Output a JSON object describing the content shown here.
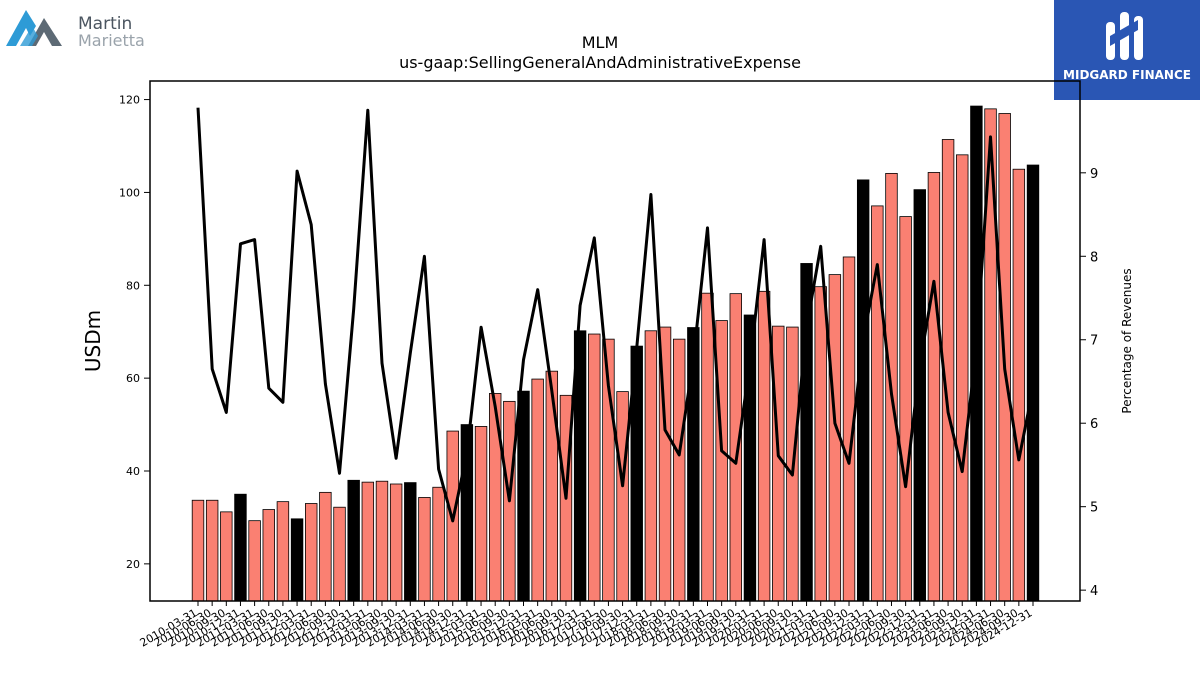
{
  "branding": {
    "left_logo_line1": "Martin",
    "left_logo_line2": "Marietta",
    "right_logo_text": "MIDGARD FINANCE"
  },
  "chart_data": {
    "type": "bar",
    "title": "MLM",
    "subtitle": "us-gaap:SellingGeneralAndAdministrativeExpense",
    "ylabel": "USDm",
    "y2label": "Percentage of Revenues",
    "ylim": [
      12,
      124
    ],
    "y2lim": [
      3.87,
      10.1
    ],
    "yticks": [
      20,
      40,
      60,
      80,
      100,
      120
    ],
    "y2ticks": [
      4,
      5,
      6,
      7,
      8,
      9
    ],
    "colors": {
      "quarter": "#fa8072",
      "annual": "#000000",
      "line": "#000000"
    },
    "categories": [
      "2010-03-31",
      "2010-06-30",
      "2010-09-30",
      "2010-12-31",
      "2011-03-31",
      "2011-06-30",
      "2011-09-30",
      "2011-12-31",
      "2012-03-31",
      "2012-06-30",
      "2012-09-30",
      "2012-12-31",
      "2013-03-31",
      "2013-06-30",
      "2013-09-30",
      "2013-12-31",
      "2014-03-31",
      "2014-06-30",
      "2014-09-30",
      "2014-12-31",
      "2015-03-31",
      "2015-06-30",
      "2015-09-30",
      "2015-12-31",
      "2016-03-31",
      "2016-06-30",
      "2016-09-30",
      "2016-12-31",
      "2017-03-31",
      "2017-06-30",
      "2017-09-30",
      "2017-12-31",
      "2018-03-31",
      "2018-06-30",
      "2018-09-30",
      "2018-12-31",
      "2019-03-31",
      "2019-06-30",
      "2019-09-30",
      "2019-12-31",
      "2020-03-31",
      "2020-06-30",
      "2020-09-30",
      "2020-12-31",
      "2021-03-31",
      "2021-06-30",
      "2021-09-30",
      "2021-12-31",
      "2022-03-31",
      "2022-06-30",
      "2022-09-30",
      "2022-12-31",
      "2023-03-31",
      "2023-06-30",
      "2023-09-30",
      "2023-12-31",
      "2024-03-31",
      "2024-06-30",
      "2024-09-30",
      "2024-12-31"
    ],
    "series": [
      {
        "kind": "bar",
        "values": [
          33.7,
          33.7,
          31.2,
          35.0,
          29.3,
          31.7,
          33.4,
          29.7,
          33.0,
          35.4,
          32.2,
          38.0,
          37.6,
          37.8,
          37.2,
          37.5,
          34.3,
          36.5,
          48.6,
          50.0,
          49.6,
          56.7,
          55.0,
          57.2,
          59.8,
          61.5,
          56.3,
          70.2,
          69.5,
          68.4,
          57.1,
          66.9,
          70.2,
          71.0,
          68.4,
          70.9,
          78.3,
          72.4,
          78.2,
          73.6,
          78.7,
          71.2,
          71.0,
          84.7,
          79.7,
          82.3,
          86.1,
          102.7,
          97.1,
          104.1,
          94.8,
          100.6,
          104.3,
          111.4,
          108.1,
          118.6,
          118.0,
          117.0,
          105.0,
          105.9
        ],
        "annual": [
          false,
          false,
          false,
          true,
          false,
          false,
          false,
          true,
          false,
          false,
          false,
          true,
          false,
          false,
          false,
          true,
          false,
          false,
          false,
          true,
          false,
          false,
          false,
          true,
          false,
          false,
          false,
          true,
          false,
          false,
          false,
          true,
          false,
          false,
          false,
          true,
          false,
          false,
          false,
          true,
          false,
          false,
          false,
          true,
          false,
          false,
          false,
          true,
          false,
          false,
          false,
          true,
          false,
          false,
          false,
          true,
          false,
          false,
          false,
          true
        ]
      },
      {
        "kind": "line",
        "axis": "right",
        "values": [
          9.78,
          6.65,
          6.13,
          8.15,
          8.2,
          6.42,
          6.25,
          9.02,
          8.38,
          6.47,
          5.4,
          7.37,
          9.75,
          6.72,
          5.58,
          6.84,
          8.0,
          5.45,
          4.83,
          5.64,
          7.15,
          6.2,
          5.07,
          6.76,
          7.6,
          6.39,
          5.1,
          7.41,
          8.22,
          6.45,
          5.25,
          6.9,
          8.74,
          5.92,
          5.62,
          6.76,
          8.34,
          5.67,
          5.52,
          6.71,
          8.2,
          5.61,
          5.38,
          7.15,
          8.12,
          6.0,
          5.52,
          7.0,
          7.9,
          6.35,
          5.24,
          6.7,
          7.7,
          6.13,
          5.42,
          6.9,
          9.43,
          6.65,
          5.56,
          6.42
        ]
      }
    ]
  }
}
